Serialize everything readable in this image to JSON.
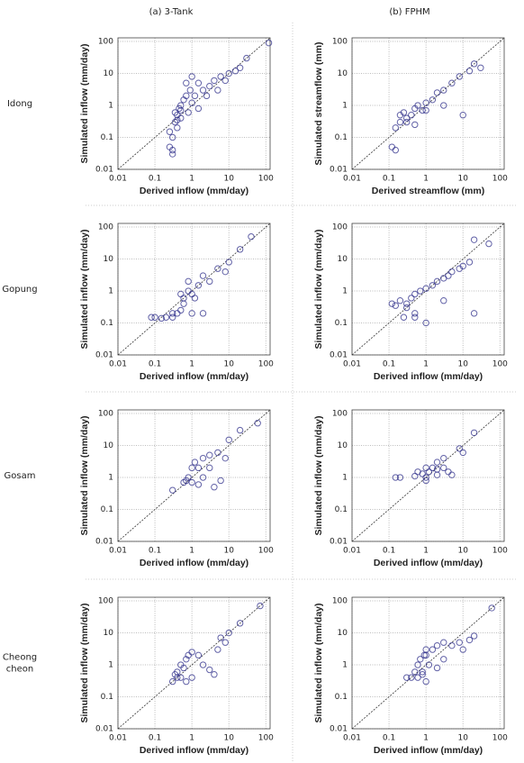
{
  "column_headers": [
    "(a)  3-Tank",
    "(b)  FPHM"
  ],
  "row_labels": [
    "Idong",
    "Gopung",
    "Gosam",
    [
      "Cheong",
      "cheon"
    ]
  ],
  "chart_data": [
    {
      "type": "scatter",
      "xlabel": "Derived inflow (mm/day)",
      "ylabel": "Simulated inflow (mm/day)",
      "log_x": true,
      "log_y": true,
      "grid": true,
      "color": "#2e2e8a",
      "xlim": [
        0.01,
        130
      ],
      "ylim": [
        0.01,
        130
      ],
      "xticks": [
        0.01,
        0.1,
        1,
        10,
        100
      ],
      "yticks": [
        0.01,
        0.1,
        1,
        10,
        100
      ],
      "x": [
        0.25,
        0.3,
        0.3,
        0.35,
        0.4,
        0.4,
        0.45,
        0.5,
        0.5,
        0.6,
        0.7,
        0.8,
        0.9,
        1,
        1.2,
        1.5,
        2,
        2.5,
        3,
        4,
        5,
        6,
        8,
        10,
        15,
        20,
        30,
        120,
        0.3,
        0.25,
        0.35,
        0.5,
        0.7,
        1,
        1.5,
        0.4
      ],
      "y": [
        0.05,
        0.04,
        0.03,
        0.3,
        0.5,
        0.2,
        0.8,
        1,
        0.4,
        1.5,
        2,
        0.6,
        3,
        1.2,
        2,
        5,
        3,
        2,
        4,
        6,
        3,
        8,
        6,
        10,
        12,
        15,
        30,
        90,
        0.1,
        0.15,
        0.6,
        0.7,
        5,
        8,
        0.8,
        0.35
      ]
    },
    {
      "type": "scatter",
      "xlabel": "Derived streamflow (mm)",
      "ylabel": "Simulated streamflow (mm)",
      "log_x": true,
      "log_y": true,
      "grid": true,
      "color": "#2e2e8a",
      "xlim": [
        0.01,
        130
      ],
      "ylim": [
        0.01,
        130
      ],
      "xticks": [
        0.01,
        0.1,
        1,
        10,
        100
      ],
      "yticks": [
        0.01,
        0.1,
        1,
        10,
        100
      ],
      "x": [
        0.12,
        0.15,
        0.2,
        0.2,
        0.25,
        0.3,
        0.4,
        0.5,
        0.6,
        0.8,
        1,
        1.5,
        2,
        3,
        5,
        8,
        10,
        15,
        20,
        30,
        0.15,
        0.3,
        0.5,
        1,
        3
      ],
      "y": [
        0.05,
        0.04,
        0.3,
        0.5,
        0.6,
        0.4,
        0.5,
        0.8,
        1,
        0.7,
        1.2,
        1.5,
        2.5,
        3,
        5,
        8,
        0.5,
        12,
        20,
        15,
        0.2,
        0.3,
        0.25,
        0.7,
        1
      ]
    },
    {
      "type": "scatter",
      "xlabel": "Derived inflow (mm/day)",
      "ylabel": "Simulated inflow (mm/day)",
      "log_x": true,
      "log_y": true,
      "grid": true,
      "color": "#2e2e8a",
      "xlim": [
        0.01,
        130
      ],
      "ylim": [
        0.01,
        130
      ],
      "xticks": [
        0.01,
        0.1,
        1,
        10,
        100
      ],
      "yticks": [
        0.01,
        0.1,
        1,
        10,
        100
      ],
      "x": [
        0.08,
        0.1,
        0.15,
        0.2,
        0.3,
        0.4,
        0.5,
        0.6,
        0.8,
        1,
        1,
        1.5,
        2,
        3,
        5,
        8,
        10,
        20,
        40,
        0.5,
        0.8,
        1.2,
        2,
        0.3,
        0.6
      ],
      "y": [
        0.15,
        0.15,
        0.14,
        0.15,
        0.2,
        0.2,
        0.25,
        0.4,
        1,
        0.8,
        0.2,
        1.5,
        3,
        2,
        5,
        4,
        8,
        20,
        50,
        0.8,
        2,
        0.6,
        0.2,
        0.15,
        0.6
      ]
    },
    {
      "type": "scatter",
      "xlabel": "Derived inflow (mm/day)",
      "ylabel": "Simulated inflow (mm/day)",
      "log_x": true,
      "log_y": true,
      "grid": true,
      "color": "#2e2e8a",
      "xlim": [
        0.01,
        130
      ],
      "ylim": [
        0.01,
        130
      ],
      "xticks": [
        0.01,
        0.1,
        1,
        10,
        100
      ],
      "yticks": [
        0.01,
        0.1,
        1,
        10,
        100
      ],
      "x": [
        0.12,
        0.15,
        0.2,
        0.25,
        0.3,
        0.4,
        0.5,
        0.7,
        1,
        1.5,
        2,
        3,
        4,
        5,
        8,
        10,
        15,
        20,
        50,
        0.5,
        1,
        3,
        20,
        0.3,
        0.5
      ],
      "y": [
        0.4,
        0.35,
        0.5,
        0.15,
        0.4,
        0.6,
        0.8,
        1,
        1.2,
        1.5,
        2,
        2.5,
        3,
        4,
        5,
        6,
        8,
        40,
        30,
        0.2,
        0.1,
        0.5,
        0.2,
        0.3,
        0.15
      ]
    },
    {
      "type": "scatter",
      "xlabel": "Derived inflow (mm/day)",
      "ylabel": "Simulated inflow (mm/day)",
      "log_x": true,
      "log_y": true,
      "grid": true,
      "color": "#2e2e8a",
      "xlim": [
        0.01,
        130
      ],
      "ylim": [
        0.01,
        130
      ],
      "xticks": [
        0.01,
        0.1,
        1,
        10,
        100
      ],
      "yticks": [
        0.01,
        0.1,
        1,
        10,
        100
      ],
      "x": [
        0.3,
        0.6,
        0.7,
        0.8,
        1,
        1,
        1.2,
        1.5,
        2,
        2,
        3,
        3,
        4,
        5,
        6,
        8,
        10,
        20,
        60,
        1.5
      ],
      "y": [
        0.4,
        0.7,
        0.8,
        1,
        2,
        0.7,
        3,
        2,
        4,
        1,
        2,
        5,
        0.5,
        6,
        0.8,
        4,
        15,
        30,
        50,
        0.6
      ]
    },
    {
      "type": "scatter",
      "xlabel": "Derived inflow (mm/day)",
      "ylabel": "Simulated inflow (mm/day)",
      "log_x": true,
      "log_y": true,
      "grid": true,
      "color": "#2e2e8a",
      "xlim": [
        0.01,
        130
      ],
      "ylim": [
        0.01,
        130
      ],
      "xticks": [
        0.01,
        0.1,
        1,
        10,
        100
      ],
      "yticks": [
        0.01,
        0.1,
        1,
        10,
        100
      ],
      "x": [
        0.15,
        0.2,
        0.5,
        0.6,
        0.8,
        1,
        1,
        1.2,
        1.5,
        2,
        2,
        3,
        3,
        4,
        5,
        8,
        10,
        20,
        1,
        2
      ],
      "y": [
        1,
        1,
        1.1,
        1.5,
        1.3,
        2,
        1,
        1.5,
        2,
        3,
        1.2,
        2,
        4,
        1.5,
        1.2,
        8,
        6,
        25,
        0.8,
        1.8
      ]
    },
    {
      "type": "scatter",
      "xlabel": "Derived inflow (mm/day)",
      "ylabel": "Simulated inflow (mm/day)",
      "log_x": true,
      "log_y": true,
      "grid": true,
      "color": "#2e2e8a",
      "xlim": [
        0.01,
        130
      ],
      "ylim": [
        0.01,
        130
      ],
      "xticks": [
        0.01,
        0.1,
        1,
        10,
        100
      ],
      "yticks": [
        0.01,
        0.1,
        1,
        10,
        100
      ],
      "x": [
        0.3,
        0.35,
        0.4,
        0.4,
        0.5,
        0.6,
        0.7,
        0.8,
        1,
        1,
        1.5,
        2,
        3,
        4,
        5,
        6,
        8,
        10,
        20,
        70,
        0.5,
        0.7
      ],
      "y": [
        0.3,
        0.5,
        0.4,
        0.6,
        1,
        0.8,
        1.5,
        2,
        2.5,
        0.4,
        2,
        1,
        0.7,
        0.5,
        3,
        7,
        5,
        10,
        20,
        70,
        0.4,
        0.3
      ]
    },
    {
      "type": "scatter",
      "xlabel": "Derived inflow (mm/day)",
      "ylabel": "Simulated inflow (mm/day)",
      "log_x": true,
      "log_y": true,
      "grid": true,
      "color": "#2e2e8a",
      "xlim": [
        0.01,
        130
      ],
      "ylim": [
        0.01,
        130
      ],
      "xticks": [
        0.01,
        0.1,
        1,
        10,
        100
      ],
      "yticks": [
        0.01,
        0.1,
        1,
        10,
        100
      ],
      "x": [
        0.3,
        0.4,
        0.5,
        0.6,
        0.7,
        0.8,
        0.9,
        1,
        1.2,
        1.5,
        2,
        3,
        5,
        8,
        10,
        15,
        20,
        60,
        0.6,
        1,
        2,
        3,
        0.8,
        1
      ],
      "y": [
        0.4,
        0.4,
        0.6,
        1,
        1.5,
        0.5,
        2,
        3,
        1,
        3,
        4,
        5,
        4,
        5,
        3,
        6,
        8,
        60,
        0.4,
        0.3,
        0.8,
        1.5,
        0.6,
        2
      ]
    }
  ]
}
